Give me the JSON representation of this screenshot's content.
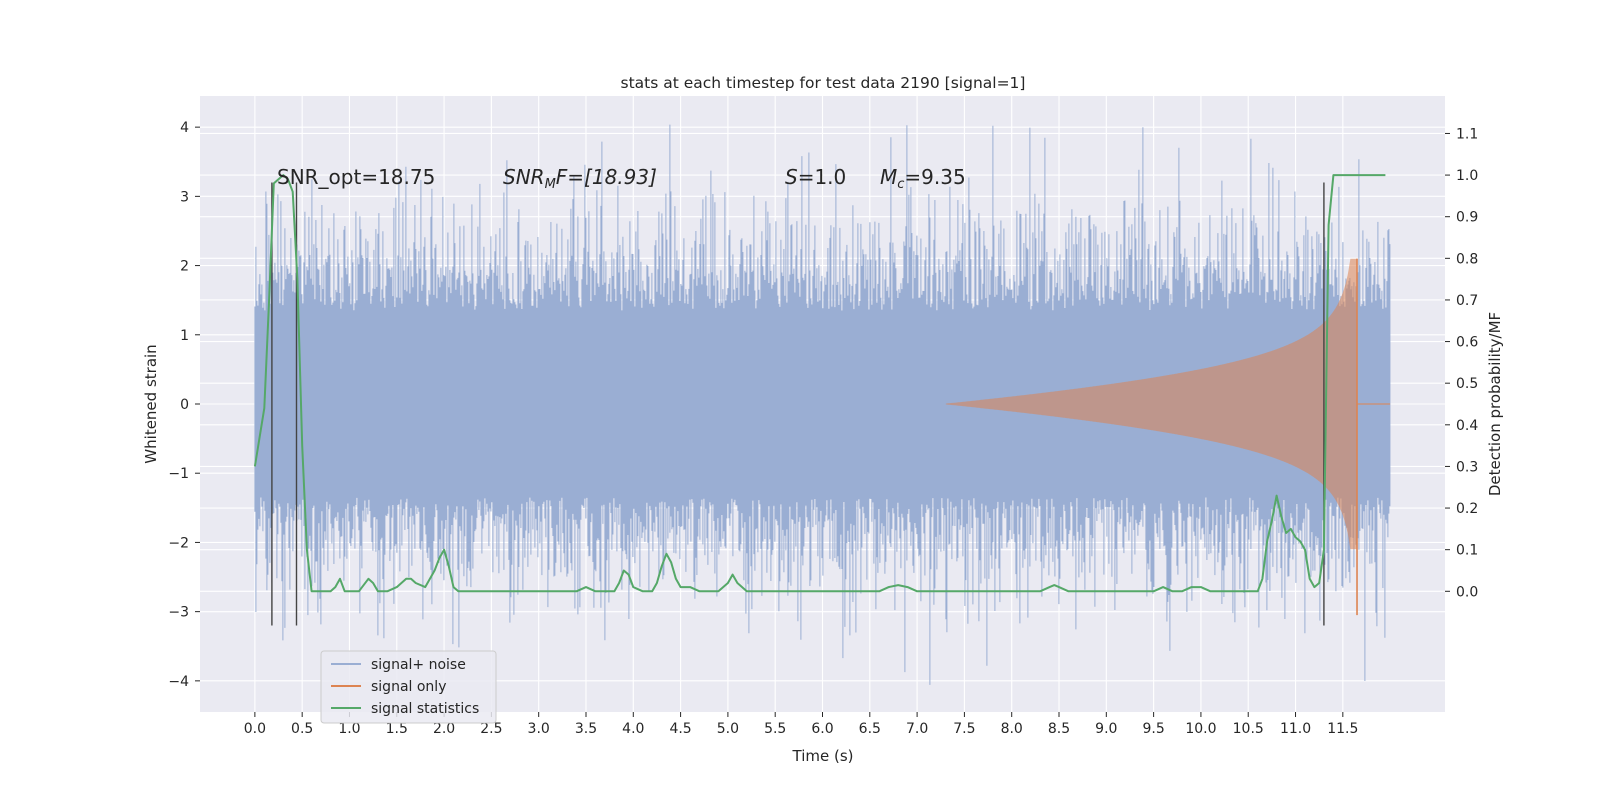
{
  "chart_data": {
    "type": "line",
    "title": "stats at each timestep for test data 2190 [signal=1]",
    "xlabel": "Time (s)",
    "ylabel": "Whitened strain",
    "y2label": "Detection probability/MF",
    "xlim": [
      -0.58,
      12.58
    ],
    "ylim": [
      -4.45,
      4.45
    ],
    "y2lim": [
      -0.29,
      1.19
    ],
    "x_ticks": [
      0.0,
      0.5,
      1.0,
      1.5,
      2.0,
      2.5,
      3.0,
      3.5,
      4.0,
      4.5,
      5.0,
      5.5,
      6.0,
      6.5,
      7.0,
      7.5,
      8.0,
      8.5,
      9.0,
      9.5,
      10.0,
      10.5,
      11.0,
      11.5
    ],
    "x_tick_labels": [
      "0.0",
      "0.5",
      "1.0",
      "1.5",
      "2.0",
      "2.5",
      "3.0",
      "3.5",
      "4.0",
      "4.5",
      "5.0",
      "5.5",
      "6.0",
      "6.5",
      "7.0",
      "7.5",
      "8.0",
      "8.5",
      "9.0",
      "9.5",
      "10.0",
      "10.5",
      "11.0",
      "11.5"
    ],
    "y_ticks": [
      4,
      3,
      2,
      1,
      0,
      -1,
      -2,
      -3,
      -4
    ],
    "y_tick_labels": [
      "4",
      "3",
      "2",
      "1",
      "0",
      "−1",
      "−2",
      "−3",
      "−4"
    ],
    "y2_ticks": [
      1.1,
      1.0,
      0.9,
      0.8,
      0.7,
      0.6,
      0.5,
      0.4,
      0.3,
      0.2,
      0.1,
      0.0
    ],
    "y2_tick_labels": [
      "1.1",
      "1.0",
      "0.9",
      "0.8",
      "0.7",
      "0.6",
      "0.5",
      "0.4",
      "0.3",
      "0.2",
      "0.1",
      "0.0"
    ],
    "grid": true,
    "legend_position": "lower-left",
    "colors": {
      "background": "#eaeaf2",
      "grid": "#ffffff",
      "noise": "#9aaed3",
      "signal": "#dd8452",
      "stats": "#55a868",
      "vline": "#444444"
    },
    "series": [
      {
        "name": "signal+ noise",
        "axis": "left",
        "description_values": {
          "x_range": [
            0.0,
            12.0
          ],
          "core_amplitude": 1.3,
          "peak_max": 4.1,
          "peak_min": -4.1
        }
      },
      {
        "name": "signal only",
        "axis": "left",
        "chirp": {
          "start": 7.3,
          "merger": 11.65,
          "peak_amplitude": 2.1,
          "min": -3.05
        }
      },
      {
        "name": "signal statistics",
        "axis": "right",
        "x": [
          0.0,
          0.1,
          0.15,
          0.2,
          0.25,
          0.3,
          0.35,
          0.4,
          0.45,
          0.5,
          0.55,
          0.6,
          0.65,
          0.7,
          0.8,
          0.85,
          0.9,
          0.95,
          1.0,
          1.1,
          1.2,
          1.25,
          1.3,
          1.35,
          1.4,
          1.5,
          1.6,
          1.65,
          1.7,
          1.8,
          1.9,
          1.95,
          2.0,
          2.05,
          2.1,
          2.15,
          2.2,
          2.3,
          2.4,
          2.5,
          2.6,
          2.7,
          2.8,
          2.9,
          3.0,
          3.1,
          3.2,
          3.3,
          3.4,
          3.5,
          3.6,
          3.7,
          3.8,
          3.85,
          3.9,
          3.95,
          4.0,
          4.1,
          4.2,
          4.25,
          4.3,
          4.35,
          4.4,
          4.45,
          4.5,
          4.55,
          4.6,
          4.7,
          4.8,
          4.9,
          5.0,
          5.05,
          5.1,
          5.15,
          5.2,
          5.3,
          5.4,
          5.6,
          5.8,
          6.0,
          6.2,
          6.4,
          6.6,
          6.7,
          6.8,
          6.9,
          7.0,
          7.2,
          7.5,
          8.0,
          8.3,
          8.4,
          8.45,
          8.5,
          8.6,
          8.8,
          9.0,
          9.3,
          9.5,
          9.6,
          9.7,
          9.8,
          9.9,
          10.0,
          10.1,
          10.2,
          10.4,
          10.6,
          10.65,
          10.7,
          10.75,
          10.8,
          10.85,
          10.9,
          10.95,
          11.0,
          11.05,
          11.1,
          11.15,
          11.2,
          11.25,
          11.3,
          11.35,
          11.4,
          11.5,
          11.7,
          11.95
        ],
        "values": [
          0.3,
          0.44,
          0.7,
          0.98,
          0.99,
          1.0,
          0.99,
          0.96,
          0.75,
          0.35,
          0.1,
          0.0,
          0.0,
          0.0,
          0.0,
          0.01,
          0.03,
          0.0,
          0.0,
          0.0,
          0.03,
          0.02,
          0.0,
          0.0,
          0.0,
          0.01,
          0.03,
          0.03,
          0.02,
          0.01,
          0.05,
          0.08,
          0.1,
          0.06,
          0.01,
          0.0,
          0.0,
          0.0,
          0.0,
          0.0,
          0.0,
          0.0,
          0.0,
          0.0,
          0.0,
          0.0,
          0.0,
          0.0,
          0.0,
          0.01,
          0.0,
          0.0,
          0.0,
          0.02,
          0.05,
          0.04,
          0.01,
          0.0,
          0.0,
          0.02,
          0.06,
          0.09,
          0.07,
          0.03,
          0.01,
          0.01,
          0.01,
          0.0,
          0.0,
          0.0,
          0.02,
          0.04,
          0.02,
          0.01,
          0.0,
          0.0,
          0.0,
          0.0,
          0.0,
          0.0,
          0.0,
          0.0,
          0.0,
          0.01,
          0.015,
          0.01,
          0.0,
          0.0,
          0.0,
          0.0,
          0.0,
          0.01,
          0.015,
          0.01,
          0.0,
          0.0,
          0.0,
          0.0,
          0.0,
          0.01,
          0.0,
          0.0,
          0.01,
          0.01,
          0.0,
          0.0,
          0.0,
          0.0,
          0.03,
          0.12,
          0.17,
          0.23,
          0.18,
          0.14,
          0.15,
          0.13,
          0.12,
          0.1,
          0.03,
          0.01,
          0.02,
          0.1,
          0.88,
          1.0,
          1.0,
          1.0,
          1.0
        ]
      }
    ],
    "vertical_lines": [
      {
        "x": 0.18,
        "y_top": 3.2,
        "y_bottom": -3.2
      },
      {
        "x": 0.44,
        "y_top": 3.2,
        "y_bottom": -3.2
      },
      {
        "x": 11.3,
        "y_top": 3.2,
        "y_bottom": -3.2
      }
    ],
    "annotations": {
      "snr_opt": "SNR_opt=18.75",
      "snr_mf_main": "SNR",
      "snr_mf_sub": "M",
      "snr_mf_tail": "F=[18.93]",
      "s_main": "S",
      "s_tail": "=1.0",
      "mc_main": "M",
      "mc_sub": "c",
      "mc_tail": "=9.35"
    }
  }
}
